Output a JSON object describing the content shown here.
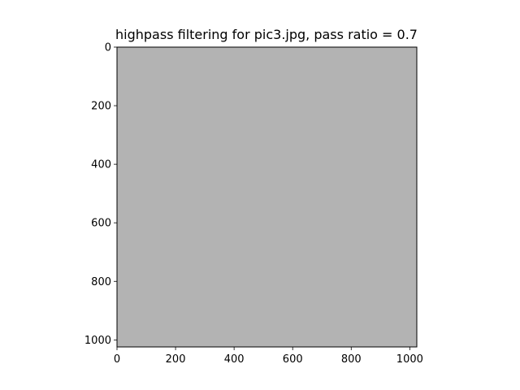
{
  "chart_data": {
    "type": "heatmap",
    "title": "highpass filtering for pic3.jpg, pass ratio = 0.7",
    "xlim": [
      0,
      1024
    ],
    "ylim": [
      1024,
      0
    ],
    "x_ticks": [
      0,
      200,
      400,
      600,
      800,
      1000
    ],
    "y_ticks": [
      0,
      200,
      400,
      600,
      800,
      1000
    ],
    "colormap": "gray",
    "background_level": 0.6,
    "grid": false
  }
}
